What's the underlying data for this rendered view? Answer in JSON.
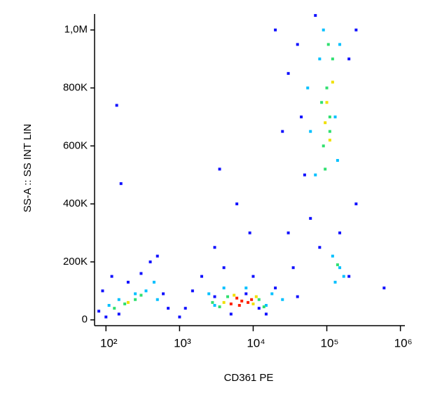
{
  "chart_data": {
    "type": "scatter",
    "x_label": "CD361 PE",
    "y_label": "SS-A :: SS INT LIN",
    "xscale": "log",
    "xlim": [
      70,
      1150000
    ],
    "ylim": [
      -20000,
      1055000
    ],
    "xticks": [
      {
        "value": 100,
        "label": "10²"
      },
      {
        "value": 1000,
        "label": "10³"
      },
      {
        "value": 10000,
        "label": "10⁴"
      },
      {
        "value": 100000,
        "label": "10⁵"
      },
      {
        "value": 1000000,
        "label": "10⁶"
      }
    ],
    "yticks": [
      0,
      {
        "value": 200000,
        "label": "200K"
      },
      {
        "value": 400000,
        "label": "400K"
      },
      {
        "value": 600000,
        "label": "600K"
      },
      {
        "value": 800000,
        "label": "800K"
      },
      {
        "value": 1000000,
        "label": "1,0M"
      }
    ],
    "series": [
      {
        "color": "#1010ff",
        "x": [
          80,
          90,
          120,
          150,
          200,
          300,
          400,
          500,
          600,
          700,
          140,
          160,
          1500,
          1200,
          2000,
          3000,
          4000,
          6000,
          8000,
          15000,
          20000,
          30000,
          35000,
          40000,
          50000,
          25000,
          30000,
          20000,
          40000,
          60000,
          80000,
          150000,
          250000,
          250000,
          200000,
          600000,
          3000,
          1000,
          100,
          5000,
          10000,
          12000,
          45000,
          70000,
          200000,
          3500,
          9000
        ],
        "values": [
          30000,
          100000,
          150000,
          20000,
          130000,
          160000,
          200000,
          220000,
          90000,
          40000,
          740000,
          470000,
          100000,
          40000,
          150000,
          250000,
          180000,
          400000,
          90000,
          20000,
          110000,
          300000,
          180000,
          80000,
          500000,
          650000,
          850000,
          1000000,
          950000,
          350000,
          250000,
          300000,
          400000,
          1000000,
          150000,
          110000,
          80000,
          10000,
          10000,
          20000,
          150000,
          40000,
          700000,
          1050000,
          900000,
          520000,
          300000
        ]
      },
      {
        "color": "#00c0ff",
        "x": [
          110,
          150,
          250,
          350,
          450,
          3000,
          2500,
          15000,
          18000,
          4000,
          70000,
          60000,
          80000,
          150000,
          140000,
          90000,
          130000,
          55000,
          150000,
          120000,
          170000,
          130000,
          500,
          8000,
          25000
        ],
        "values": [
          50000,
          70000,
          90000,
          100000,
          130000,
          50000,
          90000,
          50000,
          90000,
          110000,
          500000,
          650000,
          900000,
          950000,
          550000,
          1000000,
          700000,
          800000,
          180000,
          220000,
          150000,
          130000,
          70000,
          110000,
          70000
        ]
      },
      {
        "color": "#30e070",
        "x": [
          180,
          250,
          300,
          130,
          3500,
          4500,
          12000,
          14000,
          2800,
          90000,
          110000,
          100000,
          120000,
          95000,
          85000,
          140000,
          110000,
          105000
        ],
        "values": [
          55000,
          70000,
          85000,
          40000,
          45000,
          80000,
          70000,
          45000,
          60000,
          600000,
          700000,
          800000,
          900000,
          520000,
          750000,
          190000,
          650000,
          950000
        ]
      },
      {
        "color": "#f0e000",
        "x": [
          4000,
          10000,
          11000,
          5500,
          100000,
          110000,
          95000,
          120000,
          200
        ],
        "values": [
          60000,
          55000,
          80000,
          85000,
          750000,
          620000,
          680000,
          820000,
          60000
        ]
      },
      {
        "color": "#ff2000",
        "x": [
          5000,
          7000,
          8500,
          6500,
          9500,
          6000
        ],
        "values": [
          55000,
          65000,
          60000,
          50000,
          70000,
          75000
        ]
      }
    ]
  }
}
